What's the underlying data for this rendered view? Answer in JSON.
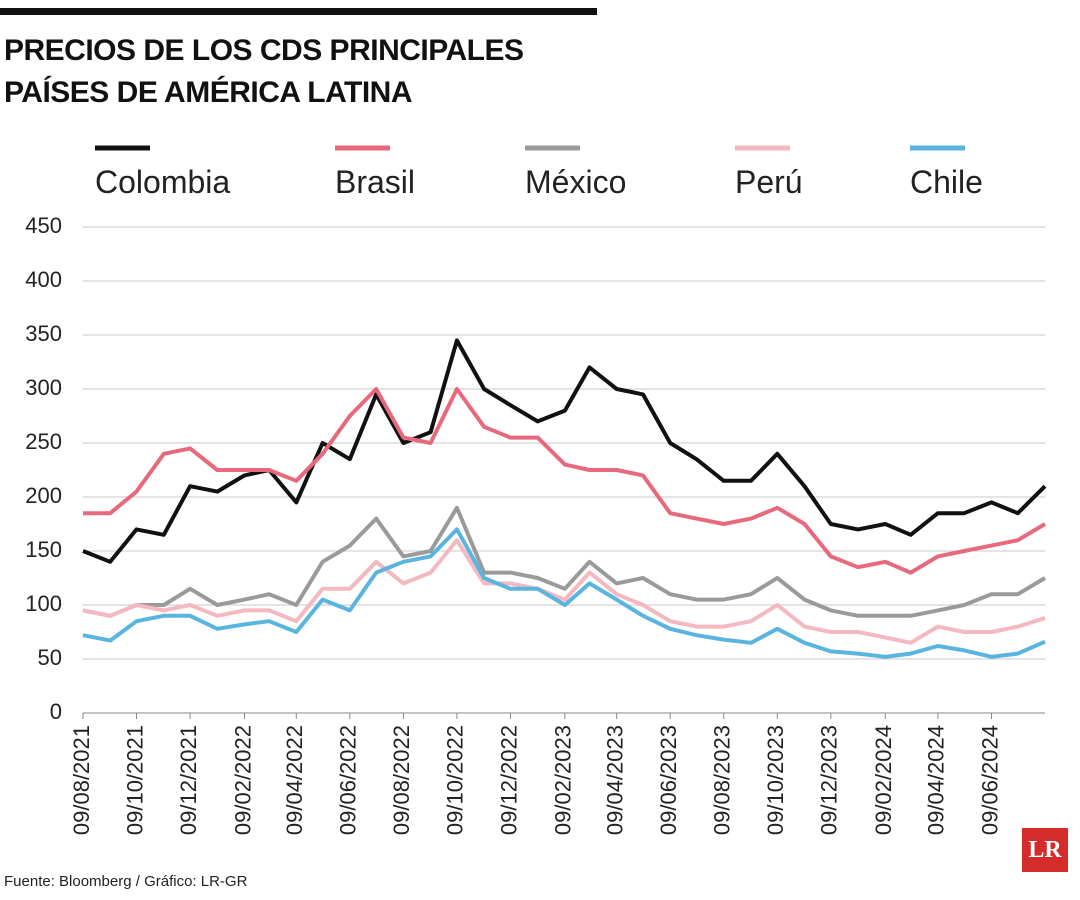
{
  "chart_data": {
    "type": "line",
    "title": "PRECIOS DE LOS CDS PRINCIPALES PAÍSES DE AMÉRICA LATINA",
    "x": [
      "09/08/2021",
      "09/09/2021",
      "09/10/2021",
      "09/11/2021",
      "09/12/2021",
      "09/01/2022",
      "09/02/2022",
      "09/03/2022",
      "09/04/2022",
      "09/05/2022",
      "09/06/2022",
      "09/07/2022",
      "09/08/2022",
      "09/09/2022",
      "09/10/2022",
      "09/11/2022",
      "09/12/2022",
      "09/01/2023",
      "09/02/2023",
      "09/03/2023",
      "09/04/2023",
      "09/05/2023",
      "09/06/2023",
      "09/07/2023",
      "09/08/2023",
      "09/09/2023",
      "09/10/2023",
      "09/11/2023",
      "09/12/2023",
      "09/01/2024",
      "09/02/2024",
      "09/03/2024",
      "09/04/2024",
      "09/05/2024",
      "09/06/2024",
      "09/07/2024",
      "09/08/2024"
    ],
    "xlim": [
      "09/08/2021",
      "09/08/2024"
    ],
    "xticks": [
      "09/08/2021",
      "09/10/2021",
      "09/12/2021",
      "09/02/2022",
      "09/04/2022",
      "09/06/2022",
      "09/08/2022",
      "09/10/2022",
      "09/12/2022",
      "09/02/2023",
      "09/04/2023",
      "09/06/2023",
      "09/08/2023",
      "09/10/2023",
      "09/12/2023",
      "09/02/2024",
      "09/04/2024",
      "09/06/2024"
    ],
    "ylim": [
      0,
      450
    ],
    "yticks": [
      0,
      50,
      100,
      150,
      200,
      250,
      300,
      350,
      400,
      450
    ],
    "grid": true,
    "series": [
      {
        "name": "Colombia",
        "color": "#111111",
        "values": [
          150,
          140,
          170,
          165,
          210,
          205,
          220,
          225,
          195,
          250,
          235,
          295,
          250,
          260,
          345,
          300,
          285,
          270,
          280,
          320,
          300,
          295,
          250,
          235,
          215,
          215,
          240,
          210,
          175,
          170,
          175,
          165,
          185,
          185,
          195,
          185,
          210
        ]
      },
      {
        "name": "Brasil",
        "color": "#e8697d",
        "values": [
          185,
          185,
          205,
          240,
          245,
          225,
          225,
          225,
          215,
          240,
          275,
          300,
          255,
          250,
          300,
          265,
          255,
          255,
          230,
          225,
          225,
          220,
          185,
          180,
          175,
          180,
          190,
          175,
          145,
          135,
          140,
          130,
          145,
          150,
          155,
          160,
          175
        ]
      },
      {
        "name": "México",
        "color": "#9a9a9a",
        "values": [
          95,
          90,
          100,
          100,
          115,
          100,
          105,
          110,
          100,
          140,
          155,
          180,
          145,
          150,
          190,
          130,
          130,
          125,
          115,
          140,
          120,
          125,
          110,
          105,
          105,
          110,
          125,
          105,
          95,
          90,
          90,
          90,
          95,
          100,
          110,
          110,
          125
        ]
      },
      {
        "name": "Perú",
        "color": "#f4b8c0",
        "values": [
          95,
          90,
          100,
          95,
          100,
          90,
          95,
          95,
          85,
          115,
          115,
          140,
          120,
          130,
          160,
          120,
          120,
          115,
          105,
          130,
          110,
          100,
          85,
          80,
          80,
          85,
          100,
          80,
          75,
          75,
          70,
          65,
          80,
          75,
          75,
          80,
          88
        ]
      },
      {
        "name": "Chile",
        "color": "#5ab4e0",
        "values": [
          72,
          67,
          85,
          90,
          90,
          78,
          82,
          85,
          75,
          105,
          95,
          130,
          140,
          145,
          170,
          125,
          115,
          115,
          100,
          120,
          105,
          90,
          78,
          72,
          68,
          65,
          78,
          65,
          57,
          55,
          52,
          55,
          62,
          58,
          52,
          55,
          66
        ]
      }
    ]
  },
  "footer": {
    "source": "Fuente: Bloomberg / Gráfico: LR-GR",
    "logo": "LR"
  }
}
